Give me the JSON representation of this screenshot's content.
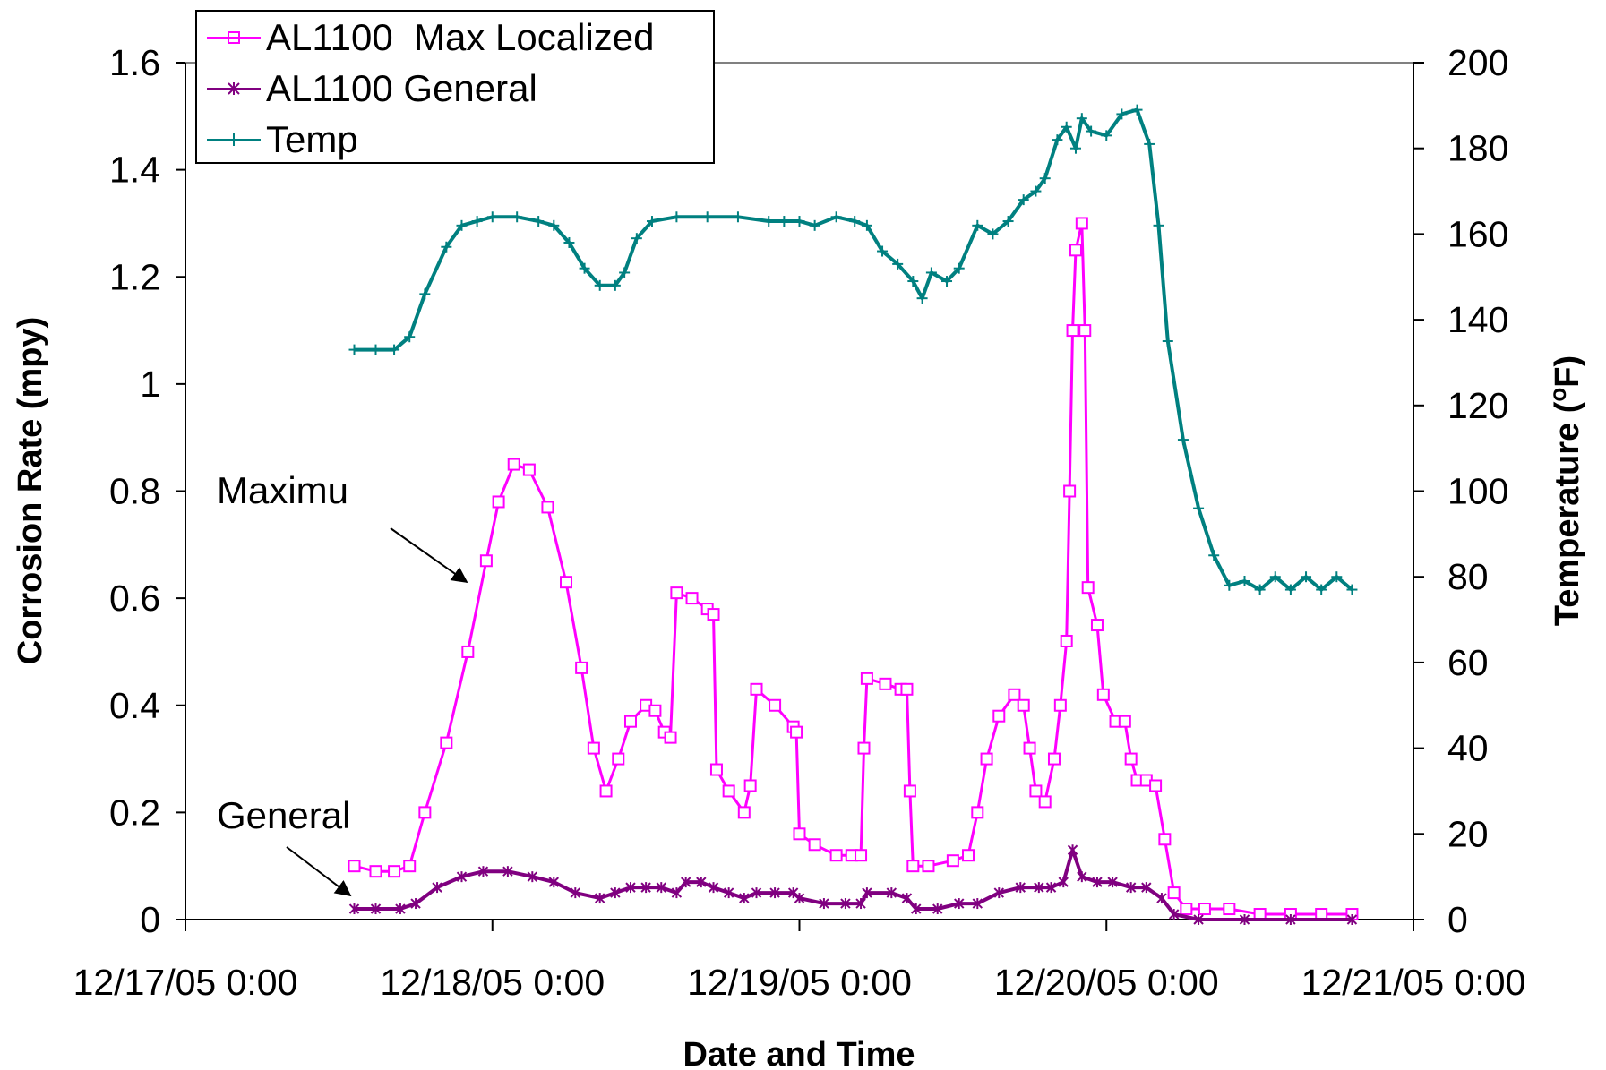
{
  "chart_data": {
    "type": "line",
    "xlabel": "Date and Time",
    "ylabel_left": "Corrosion Rate (mpy)",
    "ylabel_right": "Temperature (",
    "ylabel_right_unit": "F)",
    "ylabel_right_degree": "o",
    "x_tick_labels": [
      "12/17/05 0:00",
      "12/18/05 0:00",
      "12/19/05 0:00",
      "12/20/05 0:00",
      "12/21/05 0:00"
    ],
    "x_unit": "days since 12/17/05 0:00",
    "xlim": [
      0,
      4
    ],
    "ylim_left": [
      0,
      1.6
    ],
    "ylim_right": [
      0,
      200
    ],
    "y_left_ticks": [
      "0",
      "0.2",
      "0.4",
      "0.6",
      "0.8",
      "1",
      "1.2",
      "1.4",
      "1.6"
    ],
    "y_right_ticks": [
      "0",
      "20",
      "40",
      "60",
      "80",
      "100",
      "120",
      "140",
      "160",
      "180",
      "200"
    ],
    "grid": false,
    "legend_position": "top-left",
    "annotations": [
      {
        "text": "Maximu",
        "points_to": "AL1100  Max Localized"
      },
      {
        "text": "General",
        "points_to": "AL1100 General"
      }
    ],
    "series": [
      {
        "name": "AL1100  Max Localized",
        "axis": "left",
        "color": "#ff00ff",
        "marker": "square",
        "points": [
          [
            0.55,
            0.1
          ],
          [
            0.62,
            0.09
          ],
          [
            0.68,
            0.09
          ],
          [
            0.73,
            0.1
          ],
          [
            0.78,
            0.2
          ],
          [
            0.85,
            0.33
          ],
          [
            0.92,
            0.5
          ],
          [
            0.98,
            0.67
          ],
          [
            1.02,
            0.78
          ],
          [
            1.07,
            0.85
          ],
          [
            1.12,
            0.84
          ],
          [
            1.18,
            0.77
          ],
          [
            1.24,
            0.63
          ],
          [
            1.29,
            0.47
          ],
          [
            1.33,
            0.32
          ],
          [
            1.37,
            0.24
          ],
          [
            1.41,
            0.3
          ],
          [
            1.45,
            0.37
          ],
          [
            1.5,
            0.4
          ],
          [
            1.53,
            0.39
          ],
          [
            1.56,
            0.35
          ],
          [
            1.58,
            0.34
          ],
          [
            1.6,
            0.61
          ],
          [
            1.65,
            0.6
          ],
          [
            1.7,
            0.58
          ],
          [
            1.72,
            0.57
          ],
          [
            1.73,
            0.28
          ],
          [
            1.77,
            0.24
          ],
          [
            1.82,
            0.2
          ],
          [
            1.84,
            0.25
          ],
          [
            1.86,
            0.43
          ],
          [
            1.92,
            0.4
          ],
          [
            1.98,
            0.36
          ],
          [
            1.99,
            0.35
          ],
          [
            2.0,
            0.16
          ],
          [
            2.05,
            0.14
          ],
          [
            2.12,
            0.12
          ],
          [
            2.17,
            0.12
          ],
          [
            2.2,
            0.12
          ],
          [
            2.21,
            0.32
          ],
          [
            2.22,
            0.45
          ],
          [
            2.28,
            0.44
          ],
          [
            2.33,
            0.43
          ],
          [
            2.35,
            0.43
          ],
          [
            2.36,
            0.24
          ],
          [
            2.37,
            0.1
          ],
          [
            2.42,
            0.1
          ],
          [
            2.5,
            0.11
          ],
          [
            2.55,
            0.12
          ],
          [
            2.58,
            0.2
          ],
          [
            2.61,
            0.3
          ],
          [
            2.65,
            0.38
          ],
          [
            2.7,
            0.42
          ],
          [
            2.73,
            0.4
          ],
          [
            2.75,
            0.32
          ],
          [
            2.77,
            0.24
          ],
          [
            2.8,
            0.22
          ],
          [
            2.83,
            0.3
          ],
          [
            2.85,
            0.4
          ],
          [
            2.87,
            0.52
          ],
          [
            2.88,
            0.8
          ],
          [
            2.89,
            1.1
          ],
          [
            2.9,
            1.25
          ],
          [
            2.92,
            1.3
          ],
          [
            2.93,
            1.1
          ],
          [
            2.94,
            0.62
          ],
          [
            2.97,
            0.55
          ],
          [
            2.99,
            0.42
          ],
          [
            3.03,
            0.37
          ],
          [
            3.06,
            0.37
          ],
          [
            3.08,
            0.3
          ],
          [
            3.1,
            0.26
          ],
          [
            3.13,
            0.26
          ],
          [
            3.16,
            0.25
          ],
          [
            3.19,
            0.15
          ],
          [
            3.22,
            0.05
          ],
          [
            3.26,
            0.02
          ],
          [
            3.32,
            0.02
          ],
          [
            3.4,
            0.02
          ],
          [
            3.5,
            0.01
          ],
          [
            3.6,
            0.01
          ],
          [
            3.7,
            0.01
          ],
          [
            3.8,
            0.01
          ]
        ]
      },
      {
        "name": "AL1100 General",
        "axis": "left",
        "color": "#800080",
        "marker": "asterisk",
        "points": [
          [
            0.55,
            0.02
          ],
          [
            0.62,
            0.02
          ],
          [
            0.7,
            0.02
          ],
          [
            0.75,
            0.03
          ],
          [
            0.82,
            0.06
          ],
          [
            0.9,
            0.08
          ],
          [
            0.97,
            0.09
          ],
          [
            1.05,
            0.09
          ],
          [
            1.13,
            0.08
          ],
          [
            1.2,
            0.07
          ],
          [
            1.27,
            0.05
          ],
          [
            1.35,
            0.04
          ],
          [
            1.4,
            0.05
          ],
          [
            1.45,
            0.06
          ],
          [
            1.5,
            0.06
          ],
          [
            1.55,
            0.06
          ],
          [
            1.6,
            0.05
          ],
          [
            1.63,
            0.07
          ],
          [
            1.68,
            0.07
          ],
          [
            1.72,
            0.06
          ],
          [
            1.77,
            0.05
          ],
          [
            1.82,
            0.04
          ],
          [
            1.86,
            0.05
          ],
          [
            1.92,
            0.05
          ],
          [
            1.98,
            0.05
          ],
          [
            2.0,
            0.04
          ],
          [
            2.08,
            0.03
          ],
          [
            2.15,
            0.03
          ],
          [
            2.2,
            0.03
          ],
          [
            2.22,
            0.05
          ],
          [
            2.3,
            0.05
          ],
          [
            2.35,
            0.04
          ],
          [
            2.38,
            0.02
          ],
          [
            2.45,
            0.02
          ],
          [
            2.52,
            0.03
          ],
          [
            2.58,
            0.03
          ],
          [
            2.65,
            0.05
          ],
          [
            2.72,
            0.06
          ],
          [
            2.78,
            0.06
          ],
          [
            2.82,
            0.06
          ],
          [
            2.86,
            0.07
          ],
          [
            2.89,
            0.13
          ],
          [
            2.92,
            0.08
          ],
          [
            2.97,
            0.07
          ],
          [
            3.02,
            0.07
          ],
          [
            3.08,
            0.06
          ],
          [
            3.13,
            0.06
          ],
          [
            3.18,
            0.04
          ],
          [
            3.22,
            0.01
          ],
          [
            3.3,
            0.0
          ],
          [
            3.45,
            0.0
          ],
          [
            3.6,
            0.0
          ],
          [
            3.8,
            0.0
          ]
        ]
      },
      {
        "name": "Temp",
        "axis": "right",
        "color": "#008080",
        "marker": "plus",
        "points": [
          [
            0.55,
            133
          ],
          [
            0.62,
            133
          ],
          [
            0.68,
            133
          ],
          [
            0.73,
            136
          ],
          [
            0.78,
            146
          ],
          [
            0.85,
            157
          ],
          [
            0.9,
            162
          ],
          [
            0.95,
            163
          ],
          [
            1.0,
            164
          ],
          [
            1.08,
            164
          ],
          [
            1.15,
            163
          ],
          [
            1.2,
            162
          ],
          [
            1.25,
            158
          ],
          [
            1.3,
            152
          ],
          [
            1.35,
            148
          ],
          [
            1.4,
            148
          ],
          [
            1.43,
            151
          ],
          [
            1.47,
            159
          ],
          [
            1.52,
            163
          ],
          [
            1.6,
            164
          ],
          [
            1.7,
            164
          ],
          [
            1.8,
            164
          ],
          [
            1.9,
            163
          ],
          [
            1.95,
            163
          ],
          [
            2.0,
            163
          ],
          [
            2.05,
            162
          ],
          [
            2.12,
            164
          ],
          [
            2.18,
            163
          ],
          [
            2.22,
            162
          ],
          [
            2.27,
            156
          ],
          [
            2.32,
            153
          ],
          [
            2.37,
            149
          ],
          [
            2.4,
            145
          ],
          [
            2.43,
            151
          ],
          [
            2.48,
            149
          ],
          [
            2.52,
            152
          ],
          [
            2.58,
            162
          ],
          [
            2.63,
            160
          ],
          [
            2.68,
            163
          ],
          [
            2.73,
            168
          ],
          [
            2.77,
            170
          ],
          [
            2.8,
            173
          ],
          [
            2.84,
            182
          ],
          [
            2.87,
            185
          ],
          [
            2.9,
            180
          ],
          [
            2.92,
            187
          ],
          [
            2.95,
            184
          ],
          [
            3.0,
            183
          ],
          [
            3.05,
            188
          ],
          [
            3.1,
            189
          ],
          [
            3.14,
            181
          ],
          [
            3.17,
            162
          ],
          [
            3.2,
            135
          ],
          [
            3.25,
            112
          ],
          [
            3.3,
            96
          ],
          [
            3.35,
            85
          ],
          [
            3.4,
            78
          ],
          [
            3.45,
            79
          ],
          [
            3.5,
            77
          ],
          [
            3.55,
            80
          ],
          [
            3.6,
            77
          ],
          [
            3.65,
            80
          ],
          [
            3.7,
            77
          ],
          [
            3.75,
            80
          ],
          [
            3.8,
            77
          ]
        ]
      }
    ]
  }
}
